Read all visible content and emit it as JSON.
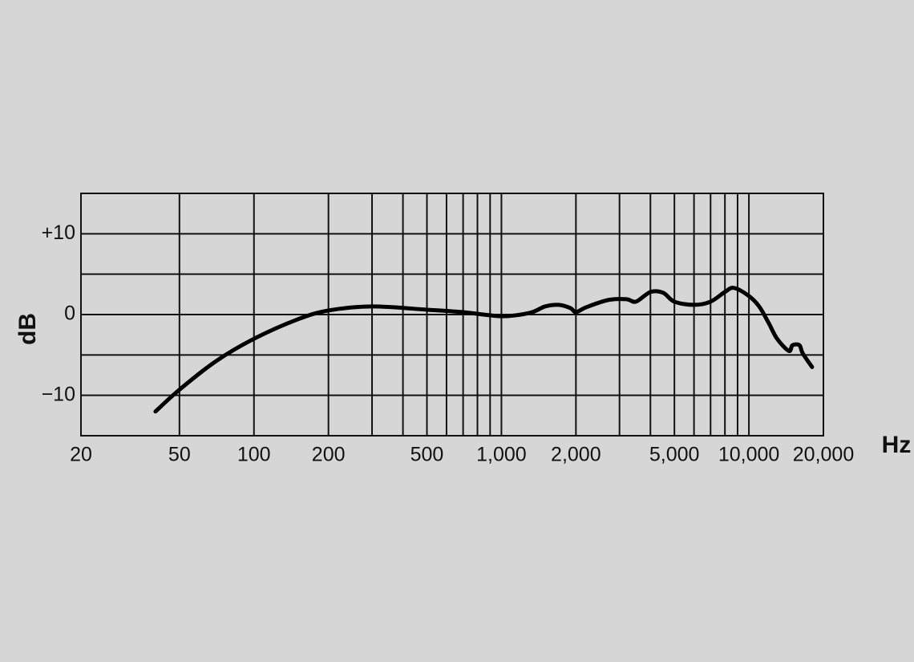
{
  "chart_data": {
    "type": "line",
    "x_label": "Hz",
    "y_label": "dB",
    "x_scale": "log",
    "xlim": [
      20,
      20000
    ],
    "ylim": [
      -15,
      15
    ],
    "xticks": [
      20,
      50,
      100,
      200,
      500,
      {
        "value": 1000,
        "label": "1,000"
      },
      {
        "value": 2000,
        "label": "2,000"
      },
      {
        "value": 5000,
        "label": "5,000"
      },
      {
        "value": 10000,
        "label": "10,000"
      },
      {
        "value": 20000,
        "label": "20,000"
      }
    ],
    "x_minor_grid": [
      300,
      400,
      600,
      700,
      800,
      900,
      3000,
      4000,
      6000,
      7000,
      8000,
      9000
    ],
    "yticks": [
      {
        "value": 10,
        "label": "+10"
      },
      0,
      {
        "value": -10,
        "label": "−10"
      }
    ],
    "y_minor_grid": [
      5,
      -5
    ],
    "grid": true,
    "series": [
      {
        "color": "#000000",
        "x": [
          40,
          50,
          70,
          100,
          150,
          200,
          300,
          500,
          700,
          1000,
          1300,
          1500,
          1700,
          1900,
          2000,
          2200,
          2700,
          3200,
          3500,
          4000,
          4500,
          5000,
          6000,
          7000,
          8000,
          8700,
          10000,
          11000,
          12000,
          13000,
          14500,
          15000,
          16000,
          16500,
          18000
        ],
        "values": [
          -12,
          -9.3,
          -5.8,
          -3.0,
          -0.6,
          0.5,
          1.0,
          0.6,
          0.3,
          -0.2,
          0.2,
          1.0,
          1.2,
          0.8,
          0.3,
          0.9,
          1.8,
          1.9,
          1.6,
          2.8,
          2.7,
          1.6,
          1.2,
          1.6,
          2.8,
          3.3,
          2.3,
          1.0,
          -1.0,
          -3.0,
          -4.5,
          -3.8,
          -3.8,
          -4.8,
          -6.5
        ]
      }
    ]
  }
}
